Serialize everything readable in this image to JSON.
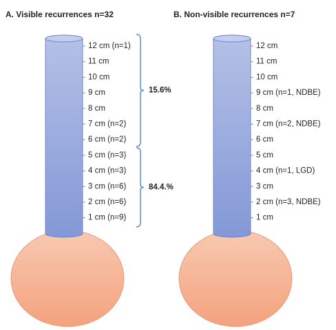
{
  "panels": [
    {
      "title": "A. Visible recurrences n=32",
      "labels": [
        "12 cm (n=1)",
        "11 cm",
        "10 cm",
        "9 cm",
        "8 cm",
        "7 cm (n=2)",
        "6 cm (n=2)",
        "5 cm (n=3)",
        "4 cm (n=3)",
        "3 cm (n=6)",
        "2 cm (n=6)",
        "1 cm (n=9)"
      ],
      "brackets": [
        {
          "label": "15.6%"
        },
        {
          "label": "84.4.%"
        }
      ]
    },
    {
      "title": "B. Non-visible recurrences n=7",
      "labels": [
        "12 cm",
        "11 cm",
        "10 cm",
        "9 cm (n=1, NDBE)",
        "8 cm",
        "7 cm (n=2, NDBE)",
        "6 cm",
        "5 cm",
        "4 cm (n=1, LGD)",
        "3 cm",
        "2 cm (n=3, NDBE)",
        "1 cm"
      ],
      "brackets": []
    }
  ]
}
